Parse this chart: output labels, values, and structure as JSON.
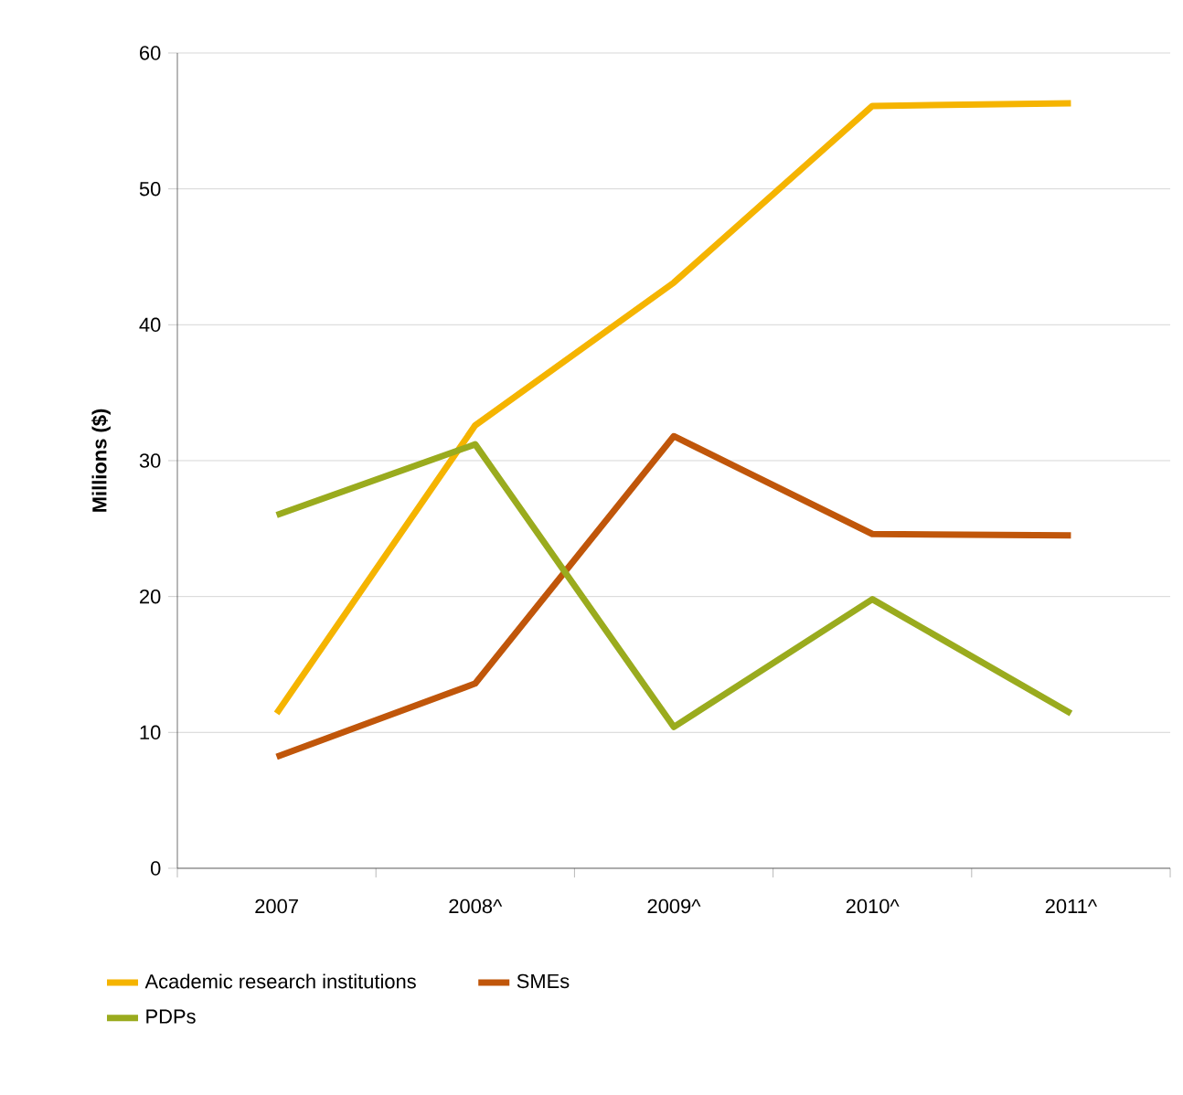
{
  "chart_data": {
    "type": "line",
    "ylabel": "Millions ($)",
    "categories": [
      "2007",
      "2008^",
      "2009^",
      "2010^",
      "2011^"
    ],
    "series": [
      {
        "name": "Academic research institutions",
        "color": "#f5b400",
        "values": [
          11.4,
          32.6,
          43.1,
          56.1,
          56.3
        ]
      },
      {
        "name": "SMEs",
        "color": "#c0560a",
        "values": [
          8.2,
          13.6,
          31.8,
          24.6,
          24.5
        ]
      },
      {
        "name": "PDPs",
        "color": "#9aab1e",
        "values": [
          26.0,
          31.2,
          10.4,
          19.8,
          11.4
        ]
      }
    ],
    "ylim": [
      0,
      60
    ],
    "yticks": [
      0,
      10,
      20,
      30,
      40,
      50,
      60
    ],
    "grid": "y",
    "legend": "bottom",
    "marker": "none",
    "line_style": "solid"
  }
}
